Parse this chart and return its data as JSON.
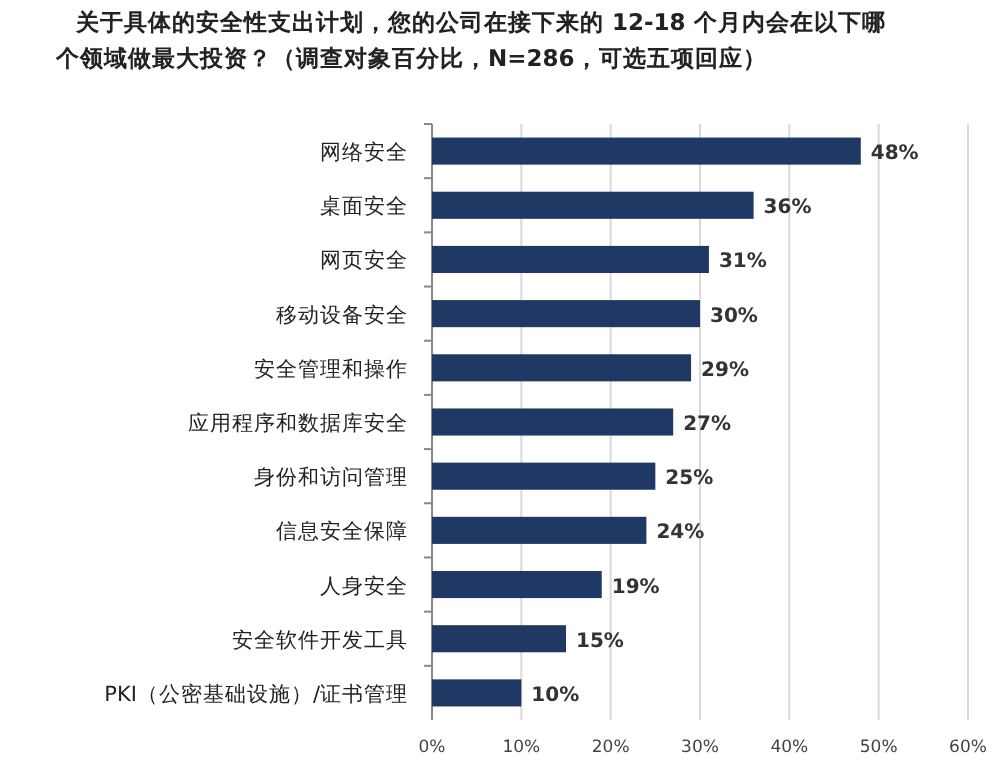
{
  "chart_data": {
    "type": "bar",
    "orientation": "horizontal",
    "title": "关于具体的安全性支出计划，您的公司在接下来的 12-18 个月内会在以下哪个领域做最大投资？（调查对象百分比，N=286，可选五项回应）",
    "categories": [
      "网络安全",
      "桌面安全",
      "网页安全",
      "移动设备安全",
      "安全管理和操作",
      "应用程序和数据库安全",
      "身份和访问管理",
      "信息安全保障",
      "人身安全",
      "安全软件开发工具",
      "PKI（公密基础设施）/证书管理"
    ],
    "values": [
      48,
      36,
      31,
      30,
      29,
      27,
      25,
      24,
      19,
      15,
      10
    ],
    "value_labels": [
      "48%",
      "36%",
      "31%",
      "30%",
      "29%",
      "27%",
      "25%",
      "24%",
      "19%",
      "15%",
      "10%"
    ],
    "color": "#1f3864",
    "xlim": [
      0,
      60
    ],
    "xticks": [
      {
        "value": 0,
        "label": "0%"
      },
      {
        "value": 10,
        "label": "10%"
      },
      {
        "value": 20,
        "label": "20%"
      },
      {
        "value": 30,
        "label": "30%"
      },
      {
        "value": 40,
        "label": "40%"
      },
      {
        "value": 50,
        "label": "50%"
      },
      {
        "value": 60,
        "label": "60%"
      }
    ],
    "grid": "x"
  }
}
